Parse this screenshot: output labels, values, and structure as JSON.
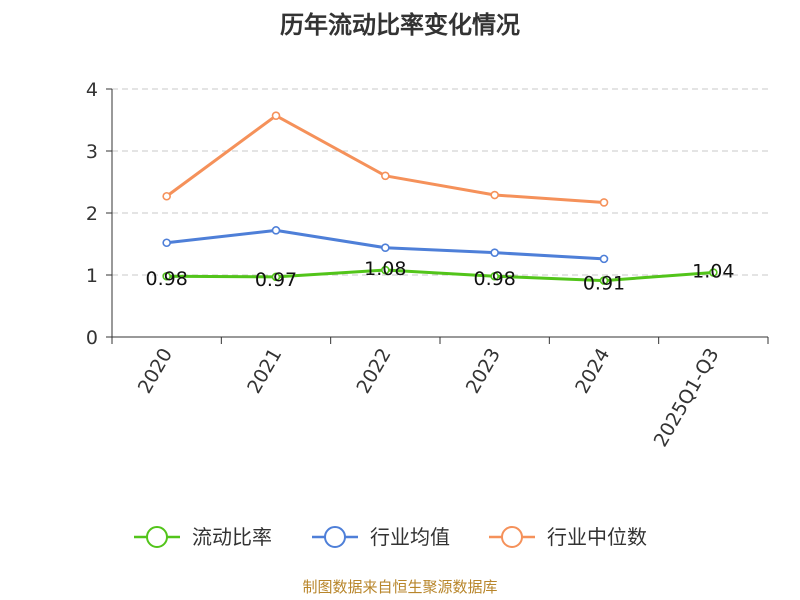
{
  "chart_data": {
    "type": "line",
    "title": "历年流动比率变化情况",
    "categories": [
      "2020",
      "2021",
      "2022",
      "2023",
      "2024",
      "2025Q1-Q3"
    ],
    "ylim": [
      0,
      4
    ],
    "yticks": [
      0,
      1,
      2,
      3,
      4
    ],
    "grid": true,
    "legend_position": "bottom",
    "series": [
      {
        "name": "流动比率",
        "color": "#52c41a",
        "values": [
          0.98,
          0.97,
          1.08,
          0.98,
          0.91,
          1.04
        ],
        "labels": [
          "0.98",
          "0.97",
          "1.08",
          "0.98",
          "0.91",
          "1.04"
        ],
        "show_labels": true
      },
      {
        "name": "行业均值",
        "color": "#4e7fd8",
        "values": [
          1.52,
          1.72,
          1.44,
          1.36,
          1.26,
          null
        ],
        "show_labels": false
      },
      {
        "name": "行业中位数",
        "color": "#f5915a",
        "values": [
          2.27,
          3.57,
          2.6,
          2.29,
          2.17,
          null
        ],
        "show_labels": false
      }
    ]
  },
  "source": "制图数据来自恒生聚源数据库"
}
